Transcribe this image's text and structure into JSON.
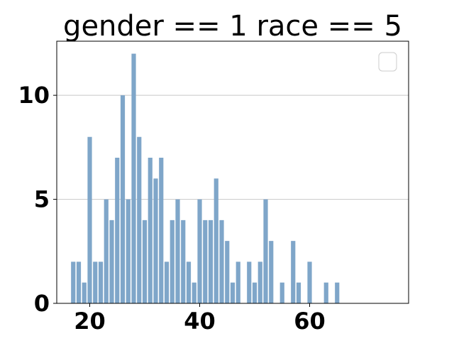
{
  "chart_data": {
    "type": "bar",
    "title": "gender == 1 race == 5",
    "xlabel": "",
    "ylabel": "",
    "xlim": [
      14,
      78
    ],
    "ylim": [
      0,
      12.6
    ],
    "x_ticks": [
      20,
      40,
      60
    ],
    "y_ticks": [
      0,
      5,
      10
    ],
    "grid": "horizontal",
    "legend": "top-right",
    "legend_entries": [],
    "bar_color": "#7fa6c9",
    "bar_width": 0.8,
    "x": [
      17,
      18,
      19,
      20,
      21,
      22,
      23,
      24,
      25,
      26,
      27,
      28,
      29,
      30,
      31,
      32,
      33,
      34,
      35,
      36,
      37,
      38,
      39,
      40,
      41,
      42,
      43,
      44,
      45,
      46,
      47,
      49,
      50,
      51,
      52,
      53,
      55,
      57,
      58,
      60,
      63,
      65
    ],
    "values": [
      2,
      2,
      1,
      8,
      2,
      2,
      5,
      4,
      7,
      10,
      5,
      12,
      8,
      4,
      7,
      6,
      7,
      2,
      4,
      5,
      4,
      2,
      1,
      5,
      4,
      4,
      6,
      4,
      3,
      1,
      2,
      2,
      1,
      2,
      5,
      3,
      1,
      3,
      1,
      2,
      1,
      1
    ]
  }
}
